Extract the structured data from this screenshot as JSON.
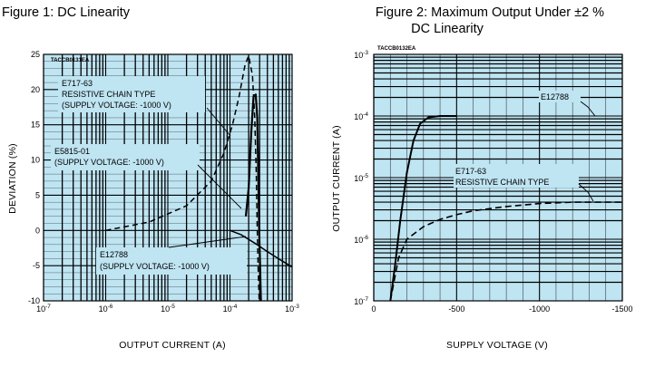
{
  "chart_data": [
    {
      "type": "line",
      "title": "Figure 1: DC Linearity",
      "figure_code": "TACCB0131EA",
      "xlabel": "OUTPUT CURRENT (A)",
      "ylabel": "DEVIATION (%)",
      "x_scale": "log",
      "xlim": [
        1e-07,
        0.001
      ],
      "ylim": [
        -10,
        25
      ],
      "grid": true,
      "background": "#bfe4f2",
      "x_tick_labels": [
        {
          "base": "10",
          "exp": "-7",
          "value": 1e-07
        },
        {
          "base": "10",
          "exp": "-6",
          "value": 1e-06
        },
        {
          "base": "10",
          "exp": "-5",
          "value": 1e-05
        },
        {
          "base": "10",
          "exp": "-4",
          "value": 0.0001
        },
        {
          "base": "10",
          "exp": "-3",
          "value": 0.001
        }
      ],
      "y_tick_labels": [
        "25",
        "20",
        "15",
        "10",
        "5",
        "0",
        "-5",
        "-10"
      ],
      "y_tick_values": [
        25,
        20,
        15,
        10,
        5,
        0,
        -5,
        -10
      ],
      "series": [
        {
          "name": "E717-63 RESISTIVE CHAIN TYPE (SUPPLY VOLTAGE: -1000 V)",
          "style": "dashed",
          "points": [
            [
              1e-06,
              0
            ],
            [
              5e-06,
              1.2
            ],
            [
              2e-05,
              3.5
            ],
            [
              5e-05,
              7
            ],
            [
              8e-05,
              11
            ],
            [
              0.00011,
              15
            ],
            [
              0.00014,
              19
            ],
            [
              0.000175,
              23.5
            ],
            [
              0.0002,
              24.8
            ],
            [
              0.00023,
              22
            ],
            [
              0.00025,
              16
            ],
            [
              0.000265,
              8
            ],
            [
              0.000275,
              0
            ],
            [
              0.000285,
              -6
            ],
            [
              0.000295,
              -10
            ]
          ]
        },
        {
          "name": "E5815-01 (SUPPLY VOLTAGE: -1000 V)",
          "style": "solid",
          "points": [
            [
              0.00018,
              2
            ],
            [
              0.0002,
              6
            ],
            [
              0.00022,
              14
            ],
            [
              0.00024,
              19
            ],
            [
              0.00026,
              19.3
            ],
            [
              0.000275,
              16
            ],
            [
              0.000285,
              8
            ],
            [
              0.000295,
              0
            ],
            [
              0.000305,
              -5
            ],
            [
              0.000315,
              -10
            ]
          ]
        },
        {
          "name": "E12788 (SUPPLY VOLTAGE: -1000 V)",
          "style": "solid",
          "points": [
            [
              0.0001,
              0
            ],
            [
              0.00015,
              -0.6
            ],
            [
              0.00025,
              -1.8
            ],
            [
              0.0004,
              -3
            ],
            [
              0.0006,
              -4
            ],
            [
              0.001,
              -5.2
            ]
          ]
        }
      ],
      "annotations": [
        {
          "lines": [
            "E717-63",
            "RESISTIVE CHAIN TYPE",
            "(SUPPLY VOLTAGE: -1000 V)"
          ]
        },
        {
          "lines": [
            "E5815-01",
            "(SUPPLY VOLTAGE: -1000 V)"
          ]
        },
        {
          "lines": [
            "E12788",
            "(SUPPLY VOLTAGE: -1000 V)"
          ]
        }
      ]
    },
    {
      "type": "line",
      "title": "Figure 2: Maximum Output Under ±2 % DC Linearity",
      "title_lines": [
        "Figure 2: Maximum Output Under ±2 %",
        "DC Linearity"
      ],
      "figure_code": "TACCB0132EA",
      "xlabel": "SUPPLY VOLTAGE (V)",
      "ylabel": "OUTPUT CURRENT (A)",
      "y_scale": "log",
      "xlim": [
        0,
        -1500
      ],
      "ylim": [
        1e-07,
        0.001
      ],
      "grid": true,
      "background": "#bfe4f2",
      "x_tick_labels": [
        "0",
        "-500",
        "-1000",
        "-1500"
      ],
      "x_tick_values": [
        0,
        -500,
        -1000,
        -1500
      ],
      "y_tick_labels": [
        {
          "base": "10",
          "exp": "-3",
          "value": 0.001
        },
        {
          "base": "10",
          "exp": "-4",
          "value": 0.0001
        },
        {
          "base": "10",
          "exp": "-5",
          "value": 1e-05
        },
        {
          "base": "10",
          "exp": "-6",
          "value": 1e-06
        },
        {
          "base": "10",
          "exp": "-7",
          "value": 1e-07
        }
      ],
      "series": [
        {
          "name": "E12788",
          "style": "solid",
          "points": [
            [
              -100,
              1e-07
            ],
            [
              -130,
              4e-07
            ],
            [
              -160,
              2e-06
            ],
            [
              -200,
              1.2e-05
            ],
            [
              -240,
              4e-05
            ],
            [
              -280,
              7.5e-05
            ],
            [
              -330,
              9.5e-05
            ],
            [
              -400,
              0.0001
            ],
            [
              -500,
              0.0001
            ]
          ]
        },
        {
          "name": "E717-63 RESISTIVE CHAIN TYPE",
          "style": "dashed",
          "points": [
            [
              -100,
              1e-07
            ],
            [
              -150,
              5e-07
            ],
            [
              -200,
              1e-06
            ],
            [
              -300,
              1.6e-06
            ],
            [
              -400,
              2.1e-06
            ],
            [
              -500,
              2.5e-06
            ],
            [
              -600,
              2.9e-06
            ],
            [
              -800,
              3.4e-06
            ],
            [
              -1000,
              3.8e-06
            ],
            [
              -1200,
              4e-06
            ],
            [
              -1500,
              4e-06
            ]
          ]
        }
      ],
      "annotations": [
        {
          "lines": [
            "E12788"
          ]
        },
        {
          "lines": [
            "E717-63",
            "RESISTIVE CHAIN TYPE"
          ]
        }
      ]
    }
  ]
}
